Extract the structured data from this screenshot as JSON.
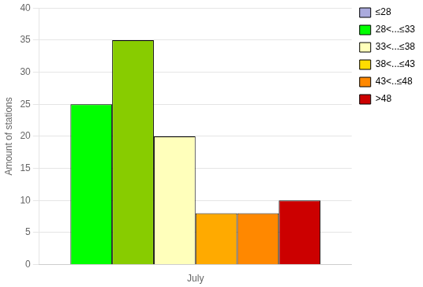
{
  "chart_data": {
    "type": "bar",
    "categories": [
      "July"
    ],
    "series": [
      {
        "name": "≤28",
        "color": "#aaaadd",
        "colors": [
          "#00ff00"
        ],
        "values": [
          25
        ]
      },
      {
        "name": "28<...≤33",
        "color": "#00ff00",
        "colors": [
          "#88cc00"
        ],
        "values": [
          35
        ]
      },
      {
        "name": "33<...≤38",
        "color": "#ffffbb",
        "colors": [
          "#ffffbb"
        ],
        "values": [
          20
        ]
      },
      {
        "name": "38<...≤43",
        "color": "#ffdd00",
        "colors": [
          "#ffaa00"
        ],
        "values": [
          8
        ]
      },
      {
        "name": "43<..≤48",
        "color": "#ff8800",
        "colors": [
          "#ff8800"
        ],
        "values": [
          8
        ]
      },
      {
        "name": ">48",
        "color": "#cc0000",
        "colors": [
          "#cc0000"
        ],
        "values": [
          10
        ]
      }
    ],
    "ylabel": "Amount of stations",
    "ylim": [
      0,
      40
    ],
    "yticks": [
      0,
      5,
      10,
      15,
      20,
      25,
      30,
      35,
      40
    ],
    "grid": "y",
    "legend": "upper right"
  }
}
